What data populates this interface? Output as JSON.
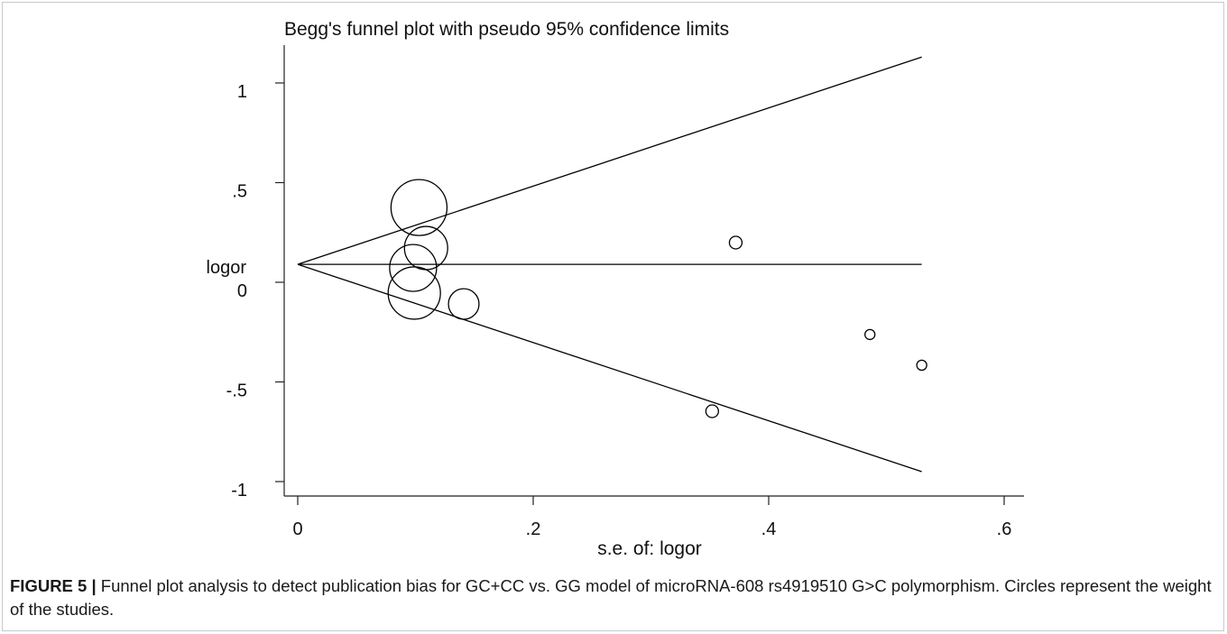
{
  "figure": {
    "caption_label": "FIGURE 5 |",
    "caption_text": "Funnel plot analysis to detect publication bias for GC+CC vs. GG model of microRNA-608 rs4919510 G>C polymorphism. Circles represent the weight of the studies."
  },
  "chart_data": {
    "type": "scatter",
    "title": "Begg's funnel plot with pseudo 95% confidence limits",
    "xlabel": "s.e. of: logor",
    "ylabel": "logor",
    "xlim": [
      0,
      0.6
    ],
    "ylim": [
      -1,
      1
    ],
    "x_ticks": [
      {
        "value": 0,
        "label": "0"
      },
      {
        "value": 0.2,
        "label": ".2"
      },
      {
        "value": 0.4,
        "label": ".4"
      },
      {
        "value": 0.6,
        "label": ".6"
      }
    ],
    "y_ticks": [
      {
        "value": 1,
        "label": "1"
      },
      {
        "value": 0.5,
        "label": ".5"
      },
      {
        "value": 0,
        "label": "0"
      },
      {
        "value": -0.5,
        "label": "-.5"
      },
      {
        "value": -1,
        "label": "-1"
      }
    ],
    "grid": false,
    "points": [
      {
        "x": 0.103,
        "y": 0.375,
        "weight": 94
      },
      {
        "x": 0.109,
        "y": 0.172,
        "weight": 56
      },
      {
        "x": 0.098,
        "y": 0.072,
        "weight": 66
      },
      {
        "x": 0.099,
        "y": -0.054,
        "weight": 82
      },
      {
        "x": 0.141,
        "y": -0.109,
        "weight": 28
      },
      {
        "x": 0.372,
        "y": 0.199,
        "weight": 4.8
      },
      {
        "x": 0.352,
        "y": -0.647,
        "weight": 4.8
      },
      {
        "x": 0.486,
        "y": -0.262,
        "weight": 3
      },
      {
        "x": 0.53,
        "y": -0.416,
        "weight": 3
      }
    ],
    "lines": {
      "upper_95_limit": {
        "x": [
          0,
          0.53
        ],
        "y": [
          0.09,
          1.13
        ]
      },
      "pooled_estimate": {
        "x": [
          0,
          0.53
        ],
        "y": [
          0.09,
          0.09
        ]
      },
      "lower_95_limit": {
        "x": [
          0,
          0.53
        ],
        "y": [
          0.09,
          -0.95
        ]
      }
    },
    "colors": {
      "marks": "#000000"
    }
  }
}
